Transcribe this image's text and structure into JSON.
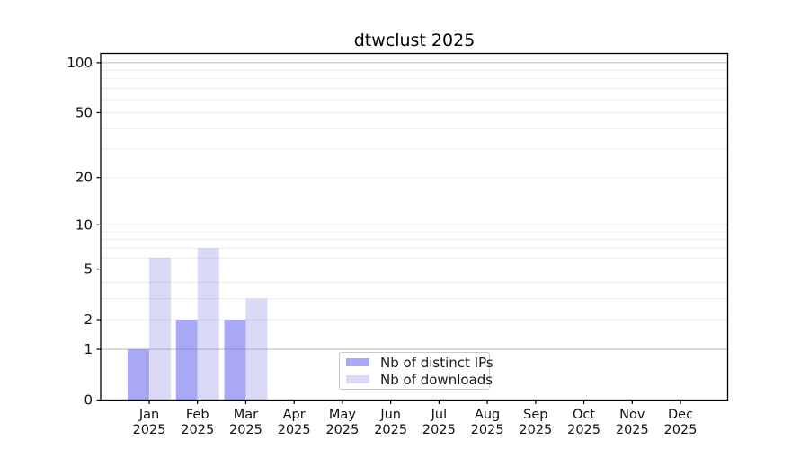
{
  "title": "dtwclust 2025",
  "chart_data": {
    "type": "bar",
    "title": "dtwclust 2025",
    "categories": [
      "Jan 2025",
      "Feb 2025",
      "Mar 2025",
      "Apr 2025",
      "May 2025",
      "Jun 2025",
      "Jul 2025",
      "Aug 2025",
      "Sep 2025",
      "Oct 2025",
      "Nov 2025",
      "Dec 2025"
    ],
    "series": [
      {
        "name": "Nb of distinct IPs",
        "color": "#a8a8f5",
        "values": [
          1,
          2,
          2,
          0,
          0,
          0,
          0,
          0,
          0,
          0,
          0,
          0
        ]
      },
      {
        "name": "Nb of downloads",
        "color": "#dadaf8",
        "values": [
          6,
          7,
          3,
          0,
          0,
          0,
          0,
          0,
          0,
          0,
          0,
          0
        ]
      }
    ],
    "xlabel": "",
    "ylabel": "",
    "y_scale": "log1p",
    "ylim": [
      0,
      113
    ],
    "y_ticks": [
      0,
      1,
      2,
      5,
      10,
      20,
      50,
      100
    ],
    "y_major_gridlines": [
      1,
      10,
      100
    ],
    "y_minor_gridlines": [
      2,
      3,
      4,
      6,
      7,
      8,
      9,
      20,
      30,
      40,
      50,
      60,
      70,
      80,
      90
    ],
    "grid": true,
    "legend_position": "lower center"
  },
  "colors": {
    "frame": "#000000",
    "tick_text": "#111111",
    "major_grid": "#c3c3c3",
    "minor_grid": "#ebebeb",
    "grid_alpha_major": 0.48,
    "grid_alpha_minor": 0.16,
    "legend_border": "#c9c9c9"
  }
}
